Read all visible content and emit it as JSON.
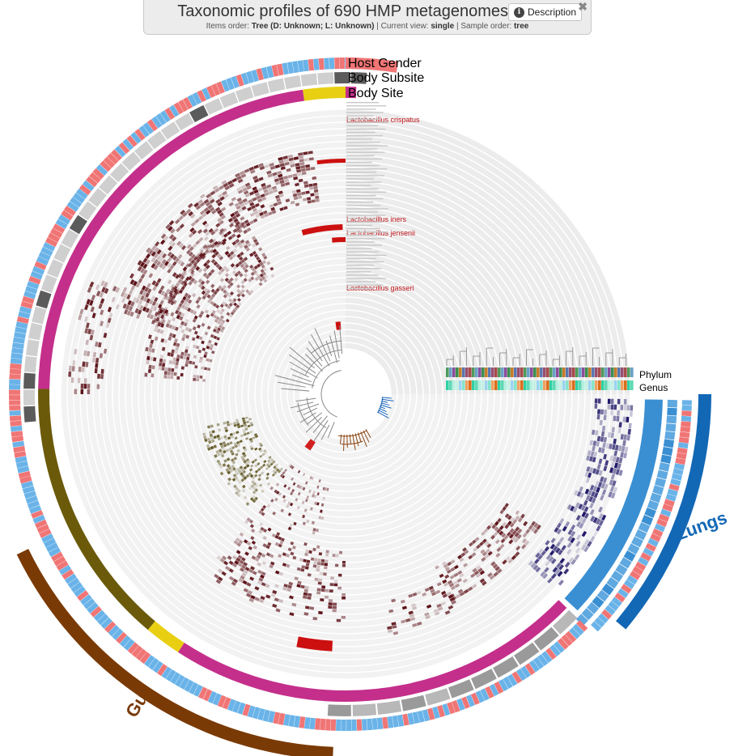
{
  "header": {
    "title": "Taxonomic profiles of 690 HMP metagenomes",
    "description_label": "Description",
    "close_glyph": "✖",
    "items_order_label": "Items order: ",
    "items_order_value": "Tree (D: Unknown; L: Unknown)",
    "current_view_label": " | Current view: ",
    "current_view_value": "single",
    "sample_order_label": " | Sample order: ",
    "sample_order_value": "tree"
  },
  "legend_layers": {
    "host_gender": "Host Gender",
    "body_subsite": "Body Subsite",
    "body_site": "Body Site",
    "phylum": "Phylum",
    "genus": "Genus"
  },
  "highlighted_taxa": [
    "Lactobacillus crispatus",
    "Lactobacillus iners",
    "Lactobacillus jensenii",
    "Lactobacillus gasseri"
  ],
  "groups": {
    "gut": "Gut",
    "lungs": "Lungs"
  },
  "colors": {
    "oral": "#c42f8b",
    "gut_site": "#6b5a0a",
    "vaginal": "#e8cf12",
    "skin": "#3a8fd2",
    "host_male": "#6ab3e8",
    "host_female": "#f07575",
    "subsite_dark": "#5b5b5b",
    "subsite_light": "#cfcfcf",
    "gut_bin": "#7a3a06",
    "lungs_bin": "#1368b5",
    "heat_red": "#5a0f15",
    "heat_olive": "#5e5420",
    "heat_navy": "#1b1465",
    "highlight": "#cc1010",
    "tree_gut": "#8b4513",
    "tree_lungs": "#1763b8"
  }
}
